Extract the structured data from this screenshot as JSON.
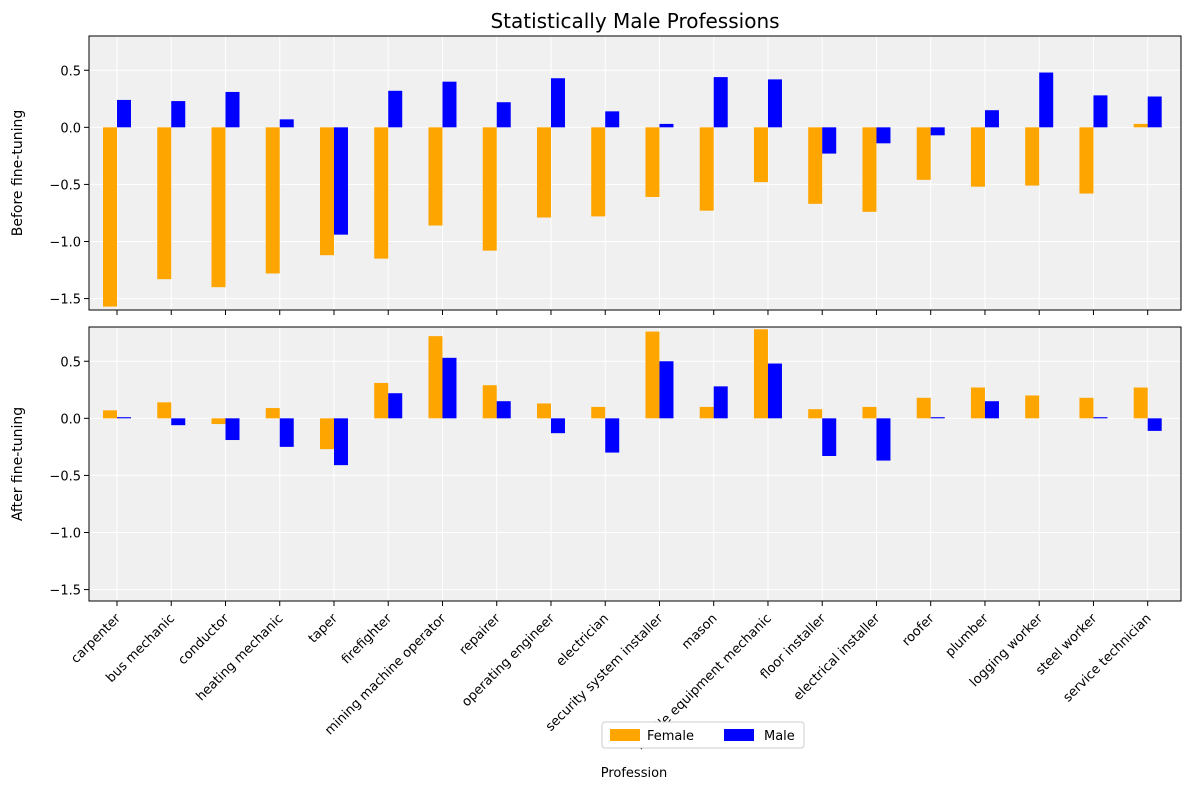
{
  "chart_data": {
    "type": "bar",
    "title": "Statistically Male Professions",
    "xlabel": "Profession",
    "ylim": [
      -1.6,
      0.8
    ],
    "yticks": [
      0.5,
      0.0,
      -0.5,
      -1.0,
      -1.5
    ],
    "ytick_labels": [
      "0.5",
      "0.0",
      "−0.5",
      "−1.0",
      "−1.5"
    ],
    "grid": true,
    "legend_position": "bottom-center",
    "colors": {
      "Female": "#ffa500",
      "Male": "#0000ff",
      "plot_bg": "#f0f0f0"
    },
    "categories": [
      "carpenter",
      "bus mechanic",
      "conductor",
      "heating mechanic",
      "taper",
      "firefighter",
      "mining machine operator",
      "repairer",
      "operating engineer",
      "electrician",
      "security system installer",
      "mason",
      "mobile equipment mechanic",
      "floor installer",
      "electrical installer",
      "roofer",
      "plumber",
      "logging worker",
      "steel worker",
      "service technician"
    ],
    "panels": [
      {
        "ylabel": "Before fine-tuning",
        "series": [
          {
            "name": "Female",
            "values": [
              -1.57,
              -1.33,
              -1.4,
              -1.28,
              -1.12,
              -1.15,
              -0.86,
              -1.08,
              -0.79,
              -0.78,
              -0.61,
              -0.73,
              -0.48,
              -0.67,
              -0.74,
              -0.46,
              -0.52,
              -0.51,
              -0.58,
              0.03
            ]
          },
          {
            "name": "Male",
            "values": [
              0.24,
              0.23,
              0.31,
              0.07,
              -0.94,
              0.32,
              0.4,
              0.22,
              0.43,
              0.14,
              0.03,
              0.44,
              0.42,
              -0.23,
              -0.14,
              -0.07,
              0.15,
              0.48,
              0.28,
              0.27
            ]
          }
        ]
      },
      {
        "ylabel": "After fine-tuning",
        "series": [
          {
            "name": "Female",
            "values": [
              0.07,
              0.14,
              -0.05,
              0.09,
              -0.27,
              0.31,
              0.72,
              0.29,
              0.13,
              0.1,
              0.76,
              0.1,
              0.78,
              0.08,
              0.1,
              0.18,
              0.27,
              0.2,
              0.18,
              0.27
            ]
          },
          {
            "name": "Male",
            "values": [
              0.01,
              -0.06,
              -0.19,
              -0.25,
              -0.41,
              0.22,
              0.53,
              0.15,
              -0.13,
              -0.3,
              0.5,
              0.28,
              0.48,
              -0.33,
              -0.37,
              0.01,
              0.15,
              0.0,
              0.01,
              -0.11
            ]
          }
        ]
      }
    ]
  }
}
